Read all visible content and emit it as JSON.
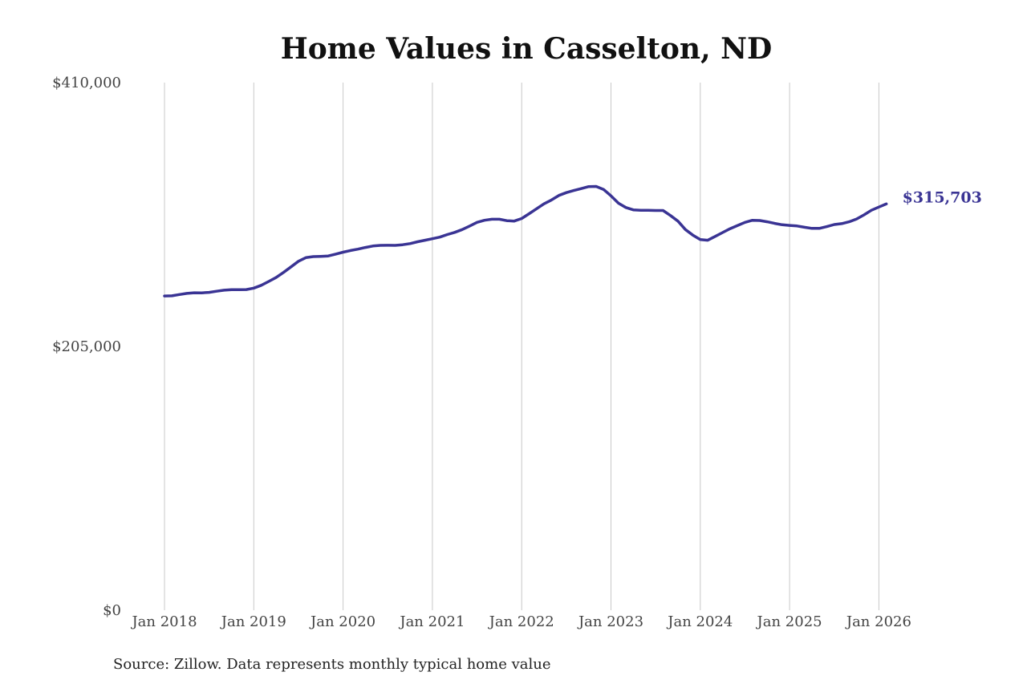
{
  "chart_data": {
    "type": "line",
    "title": "Home Values in Casselton, ND",
    "xlabel": "",
    "ylabel": "",
    "x_ticks": [
      "Jan 2018",
      "Jan 2019",
      "Jan 2020",
      "Jan 2021",
      "Jan 2022",
      "Jan 2023",
      "Jan 2024",
      "Jan 2025",
      "Jan 2026"
    ],
    "y_ticks": [
      "$0",
      "$205,000",
      "$410,000"
    ],
    "ylim": [
      0,
      410000
    ],
    "xlim": [
      "2017-12",
      "2026-03"
    ],
    "grid": "vertical",
    "legend": "none",
    "line_color": "#3a3494",
    "end_label": "$315,703",
    "series": [
      {
        "x": [
          "2018-01",
          "2018-02",
          "2018-03",
          "2018-04",
          "2018-05",
          "2018-06",
          "2018-07",
          "2018-08",
          "2018-09",
          "2018-10",
          "2018-11",
          "2018-12",
          "2019-01",
          "2019-02",
          "2019-03",
          "2019-04",
          "2019-05",
          "2019-06",
          "2019-07",
          "2019-08",
          "2019-09",
          "2019-10",
          "2019-11",
          "2019-12",
          "2020-01",
          "2020-02",
          "2020-03",
          "2020-04",
          "2020-05",
          "2020-06",
          "2020-07",
          "2020-08",
          "2020-09",
          "2020-10",
          "2020-11",
          "2020-12",
          "2021-01",
          "2021-02",
          "2021-03",
          "2021-04",
          "2021-05",
          "2021-06",
          "2021-07",
          "2021-08",
          "2021-09",
          "2021-10",
          "2021-11",
          "2021-12",
          "2022-01",
          "2022-02",
          "2022-03",
          "2022-04",
          "2022-05",
          "2022-06",
          "2022-07",
          "2022-08",
          "2022-09",
          "2022-10",
          "2022-11",
          "2022-12",
          "2023-01",
          "2023-02",
          "2023-03",
          "2023-04",
          "2023-05",
          "2023-06",
          "2023-07",
          "2023-08",
          "2023-09",
          "2023-10",
          "2023-11",
          "2023-12",
          "2024-01",
          "2024-02",
          "2024-03",
          "2024-04",
          "2024-05",
          "2024-06",
          "2024-07",
          "2024-08",
          "2024-09",
          "2024-10",
          "2024-11",
          "2024-12",
          "2025-01",
          "2025-02",
          "2025-03",
          "2025-04",
          "2025-05",
          "2025-06",
          "2025-07",
          "2025-08",
          "2025-09",
          "2025-10",
          "2025-11",
          "2025-12",
          "2026-01",
          "2026-02"
        ],
        "values": [
          244200,
          244300,
          245300,
          246200,
          246700,
          246600,
          247000,
          247900,
          248700,
          249100,
          249100,
          249200,
          250300,
          252500,
          255500,
          258500,
          262500,
          266800,
          271200,
          274000,
          274800,
          275000,
          275300,
          276700,
          278200,
          279500,
          280600,
          281900,
          283000,
          283500,
          283600,
          283500,
          284000,
          284900,
          286300,
          287500,
          288700,
          289900,
          291900,
          293600,
          295800,
          298500,
          301400,
          303000,
          303800,
          303800,
          302700,
          302400,
          304400,
          308100,
          312000,
          315800,
          318800,
          322300,
          324500,
          326100,
          327600,
          329200,
          329300,
          327000,
          322000,
          316300,
          312900,
          311100,
          310800,
          310800,
          310600,
          310600,
          306700,
          302300,
          295800,
          291500,
          288000,
          287500,
          290500,
          293500,
          296500,
          298900,
          301400,
          303000,
          302800,
          301800,
          300600,
          299500,
          299000,
          298600,
          297600,
          296700,
          296700,
          298100,
          299700,
          300400,
          301800,
          304000,
          307200,
          310800,
          313300,
          315703
        ]
      }
    ]
  },
  "footer": {
    "source": "Source: Zillow. Data represents monthly typical home value"
  }
}
